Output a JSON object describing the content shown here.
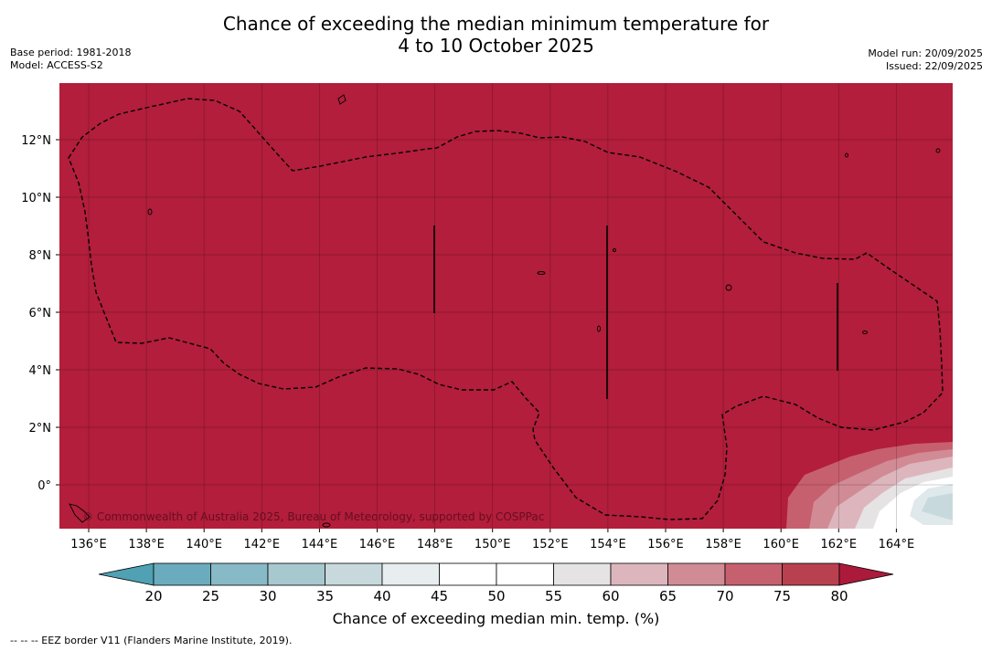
{
  "header": {
    "title_line1": "Chance of exceeding the median minimum temperature for",
    "title_line2": "4 to 10 October 2025",
    "base_period": "Base period: 1981-2018",
    "model": "Model: ACCESS-S2",
    "model_run": "Model run: 20/09/2025",
    "issued": "Issued: 22/09/2025"
  },
  "map": {
    "background_color": "#b21e3b",
    "lon_ticks": [
      "136°E",
      "138°E",
      "140°E",
      "142°E",
      "144°E",
      "146°E",
      "148°E",
      "150°E",
      "152°E",
      "154°E",
      "156°E",
      "158°E",
      "160°E",
      "162°E",
      "164°E"
    ],
    "lat_ticks": [
      "12°N",
      "10°N",
      "8°N",
      "6°N",
      "4°N",
      "2°N",
      "0°"
    ],
    "copyright": "© Commonwealth of Australia 2025, Bureau of Meteorology, supported by COSPPac"
  },
  "colorbar": {
    "labels": [
      "20",
      "25",
      "30",
      "35",
      "40",
      "45",
      "50",
      "55",
      "60",
      "65",
      "70",
      "75",
      "80"
    ],
    "colors": [
      "#4fa1b3",
      "#6aacbd",
      "#88b9c6",
      "#a7c8ce",
      "#c8d9dd",
      "#e8eef0",
      "#ffffff",
      "#ffffff",
      "#e6e3e4",
      "#ddb6bd",
      "#d18b95",
      "#c6606f",
      "#b8404f",
      "#ab1a3a"
    ],
    "title": "Chance of exceeding median min. temp. (%)"
  },
  "footer": {
    "legend": "--  --  -- EEZ border V11 (Flanders Marine Institute, 2019)."
  }
}
